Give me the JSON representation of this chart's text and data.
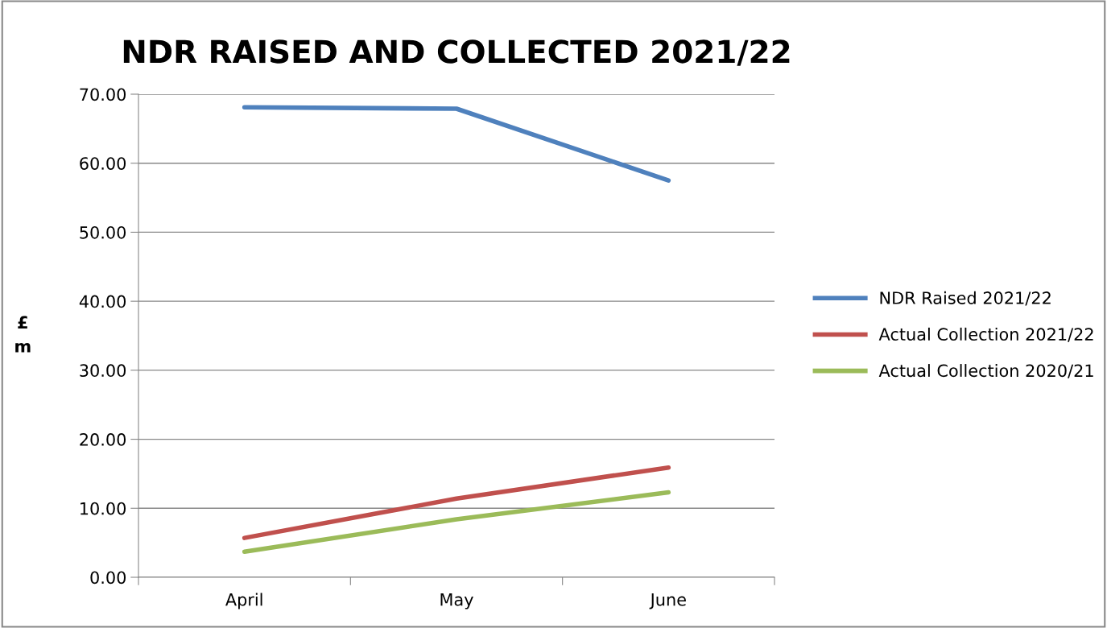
{
  "chart_data": {
    "type": "line",
    "title": "NDR RAISED AND COLLECTED 2021/22",
    "ylabel": "£m",
    "categories": [
      "April",
      "May",
      "June"
    ],
    "series": [
      {
        "name": "NDR Raised 2021/22",
        "color": "#4f81bd",
        "values": [
          68.1,
          67.9,
          57.5
        ]
      },
      {
        "name": "Actual Collection 2021/22",
        "color": "#c0504d",
        "values": [
          5.7,
          11.4,
          15.9
        ]
      },
      {
        "name": "Actual Collection 2020/21",
        "color": "#9bbb59",
        "values": [
          3.7,
          8.4,
          12.3
        ]
      }
    ],
    "ylim": [
      0,
      70
    ],
    "yticks": [
      {
        "value": 0,
        "label": "0.00"
      },
      {
        "value": 10,
        "label": "10.00"
      },
      {
        "value": 20,
        "label": "20.00"
      },
      {
        "value": 30,
        "label": "30.00"
      },
      {
        "value": 40,
        "label": "40.00"
      },
      {
        "value": 50,
        "label": "50.00"
      },
      {
        "value": 60,
        "label": "60.00"
      },
      {
        "value": 70,
        "label": "70.00"
      }
    ],
    "grid": "y",
    "legend": "right",
    "marker": "none",
    "line_style": "solid"
  }
}
